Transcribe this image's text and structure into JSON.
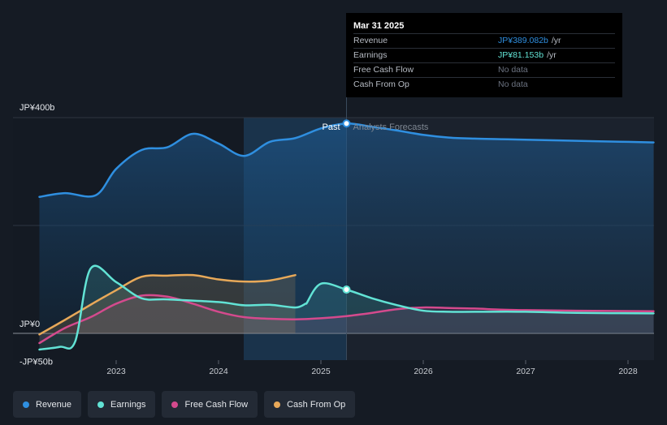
{
  "chart_data": {
    "type": "line",
    "currency_note": "JPY",
    "y_axis": {
      "top_label": "JP¥400b",
      "zero_label": "JP¥0",
      "bottom_label": "-JP¥50b",
      "ylim": [
        -50,
        400
      ]
    },
    "x_ticks": [
      "2023",
      "2024",
      "2025",
      "2026",
      "2027",
      "2028"
    ],
    "past_label": "Past",
    "forecast_label": "Analysts Forecasts",
    "series": [
      {
        "name": "Revenue",
        "color": "#2f8fe0",
        "points": [
          [
            2022.25,
            253
          ],
          [
            2022.5,
            260
          ],
          [
            2022.8,
            256
          ],
          [
            2023.0,
            305
          ],
          [
            2023.25,
            340
          ],
          [
            2023.5,
            345
          ],
          [
            2023.75,
            370
          ],
          [
            2024.0,
            352
          ],
          [
            2024.25,
            329
          ],
          [
            2024.5,
            355
          ],
          [
            2024.75,
            362
          ],
          [
            2025.0,
            380
          ],
          [
            2025.25,
            389
          ],
          [
            2025.5,
            383
          ],
          [
            2025.75,
            376
          ],
          [
            2026.0,
            368
          ],
          [
            2026.25,
            363
          ],
          [
            2026.5,
            361
          ],
          [
            2026.75,
            360
          ],
          [
            2027.0,
            359
          ],
          [
            2027.5,
            357
          ],
          [
            2028.0,
            355
          ],
          [
            2028.25,
            354
          ]
        ]
      },
      {
        "name": "Earnings",
        "color": "#62e3d5",
        "points": [
          [
            2022.25,
            -30
          ],
          [
            2022.45,
            -25
          ],
          [
            2022.6,
            -15
          ],
          [
            2022.75,
            120
          ],
          [
            2023.0,
            95
          ],
          [
            2023.25,
            65
          ],
          [
            2023.5,
            63
          ],
          [
            2024.0,
            58
          ],
          [
            2024.25,
            52
          ],
          [
            2024.5,
            53
          ],
          [
            2024.75,
            48
          ],
          [
            2024.85,
            55
          ],
          [
            2025.0,
            92
          ],
          [
            2025.25,
            81
          ],
          [
            2025.5,
            65
          ],
          [
            2025.75,
            52
          ],
          [
            2026.0,
            42
          ],
          [
            2026.25,
            40
          ],
          [
            2026.5,
            40
          ],
          [
            2027.0,
            40
          ],
          [
            2027.5,
            38
          ],
          [
            2028.25,
            37
          ]
        ]
      },
      {
        "name": "Free Cash Flow",
        "color": "#d44a8d",
        "points": [
          [
            2022.25,
            -18
          ],
          [
            2022.5,
            10
          ],
          [
            2022.75,
            30
          ],
          [
            2023.0,
            55
          ],
          [
            2023.25,
            70
          ],
          [
            2023.5,
            68
          ],
          [
            2023.75,
            55
          ],
          [
            2024.0,
            40
          ],
          [
            2024.25,
            30
          ],
          [
            2024.5,
            27
          ],
          [
            2024.75,
            26
          ],
          [
            2025.0,
            28
          ],
          [
            2025.25,
            32
          ],
          [
            2025.5,
            38
          ],
          [
            2025.75,
            45
          ],
          [
            2026.0,
            48
          ],
          [
            2026.25,
            47
          ],
          [
            2026.5,
            46
          ],
          [
            2026.75,
            44
          ],
          [
            2027.0,
            43
          ],
          [
            2027.5,
            42
          ],
          [
            2028.25,
            41
          ]
        ]
      },
      {
        "name": "Cash From Op",
        "color": "#e8a959",
        "points": [
          [
            2022.25,
            -2
          ],
          [
            2022.5,
            25
          ],
          [
            2022.75,
            53
          ],
          [
            2023.0,
            80
          ],
          [
            2023.25,
            105
          ],
          [
            2023.5,
            107
          ],
          [
            2023.75,
            108
          ],
          [
            2024.0,
            100
          ],
          [
            2024.25,
            96
          ],
          [
            2024.5,
            98
          ],
          [
            2024.75,
            108
          ]
        ]
      }
    ],
    "tooltip": {
      "date": "Mar 31 2025",
      "rows": [
        {
          "label": "Revenue",
          "value": "JP¥389.082b",
          "unit": "/yr",
          "kind": "rev"
        },
        {
          "label": "Earnings",
          "value": "JP¥81.153b",
          "unit": "/yr",
          "kind": "earn"
        },
        {
          "label": "Free Cash Flow",
          "value": "No data",
          "unit": "",
          "kind": "none"
        },
        {
          "label": "Cash From Op",
          "value": "No data",
          "unit": "",
          "kind": "none"
        }
      ]
    }
  },
  "legend": [
    {
      "label": "Revenue",
      "color": "#2f8fe0"
    },
    {
      "label": "Earnings",
      "color": "#62e3d5"
    },
    {
      "label": "Free Cash Flow",
      "color": "#d44a8d"
    },
    {
      "label": "Cash From Op",
      "color": "#e8a959"
    }
  ]
}
